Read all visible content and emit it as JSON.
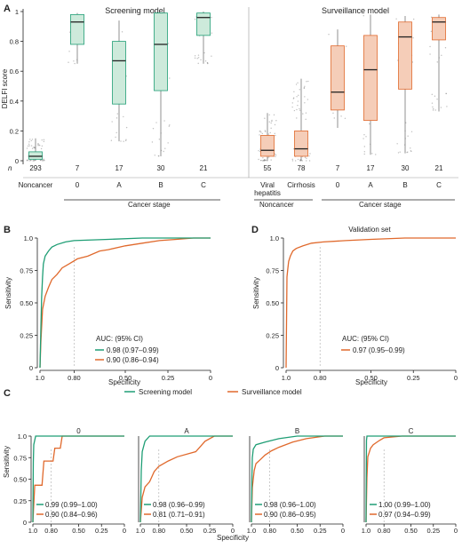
{
  "colors": {
    "screening": "#1f9e75",
    "surveillance": "#e0692c",
    "screening_fill": "#cdeadb",
    "surveillance_fill": "#f5cdb8"
  },
  "panels": {
    "a": "A",
    "b": "B",
    "c": "C",
    "d": "D"
  },
  "legend": {
    "screening": "Screening model",
    "surveillance": "Surveillance model"
  },
  "chart_data": [
    {
      "id": "A",
      "type": "box",
      "ylabel": "DELFI score",
      "ylim": [
        0,
        1
      ],
      "yticks": [
        "0",
        "0.2",
        "0.4",
        "0.6",
        "0.8",
        "1"
      ],
      "n_label": "n",
      "screening": {
        "title": "Screening model",
        "categories": [
          "Noncancer",
          "0",
          "A",
          "B",
          "C"
        ],
        "n": [
          "293",
          "7",
          "17",
          "30",
          "21"
        ],
        "boxes": [
          {
            "q1": 0.01,
            "median": 0.03,
            "q3": 0.06,
            "lo": 0.0,
            "hi": 0.15
          },
          {
            "q1": 0.78,
            "median": 0.93,
            "q3": 0.98,
            "lo": 0.65,
            "hi": 0.99
          },
          {
            "q1": 0.38,
            "median": 0.67,
            "q3": 0.8,
            "lo": 0.13,
            "hi": 0.94
          },
          {
            "q1": 0.47,
            "median": 0.78,
            "q3": 0.99,
            "lo": 0.03,
            "hi": 0.99
          },
          {
            "q1": 0.84,
            "median": 0.96,
            "q3": 0.99,
            "lo": 0.65,
            "hi": 1.0
          }
        ],
        "group_label": "Cancer stage"
      },
      "surveillance": {
        "title": "Surveillance model",
        "categories": [
          "Viral hepatitis",
          "Cirrhosis",
          "0",
          "A",
          "B",
          "C"
        ],
        "n": [
          "55",
          "78",
          "7",
          "17",
          "30",
          "21"
        ],
        "boxes": [
          {
            "q1": 0.03,
            "median": 0.07,
            "q3": 0.17,
            "lo": 0.0,
            "hi": 0.32
          },
          {
            "q1": 0.03,
            "median": 0.08,
            "q3": 0.2,
            "lo": 0.0,
            "hi": 0.55
          },
          {
            "q1": 0.34,
            "median": 0.46,
            "q3": 0.77,
            "lo": 0.22,
            "hi": 0.88
          },
          {
            "q1": 0.27,
            "median": 0.61,
            "q3": 0.84,
            "lo": 0.04,
            "hi": 0.98
          },
          {
            "q1": 0.48,
            "median": 0.83,
            "q3": 0.93,
            "lo": 0.05,
            "hi": 0.97
          },
          {
            "q1": 0.81,
            "median": 0.93,
            "q3": 0.96,
            "lo": 0.33,
            "hi": 0.98
          }
        ],
        "group_labels": [
          "Noncancer",
          "Cancer stage"
        ]
      }
    },
    {
      "id": "B",
      "type": "line",
      "xlabel": "Specificity",
      "ylabel": "Sensitivity",
      "xticks": [
        "1.0",
        "0.80",
        "0.50",
        "0.25",
        "0"
      ],
      "yticks": [
        "0",
        "0.25",
        "0.50",
        "0.75",
        "1.0"
      ],
      "legend_title": "AUC: (95% CI)",
      "series": [
        {
          "label": "0.98 (0.97–0.99)",
          "points": [
            [
              1,
              0
            ],
            [
              0.995,
              0.3
            ],
            [
              0.99,
              0.55
            ],
            [
              0.985,
              0.7
            ],
            [
              0.98,
              0.8
            ],
            [
              0.97,
              0.86
            ],
            [
              0.95,
              0.9
            ],
            [
              0.93,
              0.93
            ],
            [
              0.9,
              0.95
            ],
            [
              0.85,
              0.97
            ],
            [
              0.8,
              0.98
            ],
            [
              0.6,
              0.99
            ],
            [
              0.4,
              1.0
            ],
            [
              0,
              1.0
            ]
          ]
        },
        {
          "label": "0.90 (0.86–0.94)",
          "points": [
            [
              1,
              0
            ],
            [
              0.995,
              0.2
            ],
            [
              0.985,
              0.45
            ],
            [
              0.97,
              0.55
            ],
            [
              0.95,
              0.62
            ],
            [
              0.93,
              0.68
            ],
            [
              0.9,
              0.72
            ],
            [
              0.87,
              0.77
            ],
            [
              0.83,
              0.8
            ],
            [
              0.78,
              0.84
            ],
            [
              0.72,
              0.86
            ],
            [
              0.65,
              0.9
            ],
            [
              0.6,
              0.91
            ],
            [
              0.5,
              0.94
            ],
            [
              0.4,
              0.96
            ],
            [
              0.3,
              0.98
            ],
            [
              0.2,
              0.99
            ],
            [
              0.1,
              1.0
            ],
            [
              0,
              1.0
            ]
          ]
        }
      ]
    },
    {
      "id": "D",
      "type": "line",
      "title": "Validation set",
      "xlabel": "Specificity",
      "ylabel": "Sensitivity",
      "xticks": [
        "1.0",
        "0.80",
        "0.50",
        "0.25",
        "0"
      ],
      "yticks": [
        "0",
        "0.25",
        "0.50",
        "0.75",
        "1.0"
      ],
      "legend_title": "AUC: (95% CI)",
      "series": [
        {
          "label": "0.97 (0.95–0.99)",
          "points": [
            [
              1,
              0
            ],
            [
              0.995,
              0.7
            ],
            [
              0.99,
              0.76
            ],
            [
              0.985,
              0.82
            ],
            [
              0.975,
              0.86
            ],
            [
              0.96,
              0.9
            ],
            [
              0.94,
              0.92
            ],
            [
              0.9,
              0.94
            ],
            [
              0.85,
              0.96
            ],
            [
              0.78,
              0.97
            ],
            [
              0.65,
              0.98
            ],
            [
              0.5,
              0.99
            ],
            [
              0.3,
              1.0
            ],
            [
              0,
              1.0
            ]
          ]
        }
      ]
    },
    {
      "id": "C",
      "type": "line",
      "xlabel": "Specificity",
      "ylabel": "Sensitivity",
      "xticks": [
        "1.0",
        "0.80",
        "0.50",
        "0.25",
        "0"
      ],
      "yticks": [
        "0",
        "0.25",
        "0.50",
        "0.75",
        "1.0"
      ],
      "facets": [
        {
          "title": "0",
          "labels": [
            "0.99 (0.99–1.00)",
            "0.90 (0.84–0.96)"
          ],
          "screening": [
            [
              1,
              0
            ],
            [
              0.995,
              0.7
            ],
            [
              0.99,
              0.9
            ],
            [
              0.97,
              1.0
            ],
            [
              0,
              1.0
            ]
          ],
          "surveillance": [
            [
              1,
              0
            ],
            [
              0.98,
              0.43
            ],
            [
              0.9,
              0.43
            ],
            [
              0.88,
              0.71
            ],
            [
              0.78,
              0.71
            ],
            [
              0.76,
              0.86
            ],
            [
              0.7,
              0.86
            ],
            [
              0.68,
              1.0
            ],
            [
              0,
              1.0
            ]
          ]
        },
        {
          "title": "A",
          "labels": [
            "0.98 (0.96–0.99)",
            "0.81 (0.71–0.91)"
          ],
          "screening": [
            [
              1,
              0
            ],
            [
              0.99,
              0.6
            ],
            [
              0.98,
              0.82
            ],
            [
              0.95,
              0.94
            ],
            [
              0.9,
              1.0
            ],
            [
              0,
              1.0
            ]
          ],
          "surveillance": [
            [
              1,
              0
            ],
            [
              0.98,
              0.29
            ],
            [
              0.95,
              0.41
            ],
            [
              0.9,
              0.47
            ],
            [
              0.85,
              0.59
            ],
            [
              0.8,
              0.65
            ],
            [
              0.7,
              0.71
            ],
            [
              0.6,
              0.76
            ],
            [
              0.4,
              0.82
            ],
            [
              0.3,
              0.94
            ],
            [
              0.2,
              1.0
            ],
            [
              0,
              1.0
            ]
          ]
        },
        {
          "title": "B",
          "labels": [
            "0.98 (0.96–1.00)",
            "0.90 (0.86–0.95)"
          ],
          "screening": [
            [
              1,
              0
            ],
            [
              0.995,
              0.5
            ],
            [
              0.99,
              0.75
            ],
            [
              0.98,
              0.85
            ],
            [
              0.95,
              0.9
            ],
            [
              0.85,
              0.93
            ],
            [
              0.7,
              0.97
            ],
            [
              0.5,
              1.0
            ],
            [
              0,
              1.0
            ]
          ],
          "surveillance": [
            [
              1,
              0
            ],
            [
              0.99,
              0.4
            ],
            [
              0.97,
              0.6
            ],
            [
              0.95,
              0.68
            ],
            [
              0.9,
              0.73
            ],
            [
              0.85,
              0.78
            ],
            [
              0.78,
              0.83
            ],
            [
              0.7,
              0.87
            ],
            [
              0.55,
              0.93
            ],
            [
              0.4,
              0.97
            ],
            [
              0.2,
              1.0
            ],
            [
              0,
              1.0
            ]
          ]
        },
        {
          "title": "C",
          "labels": [
            "1.00 (0.99–1.00)",
            "0.97 (0.94–0.99)"
          ],
          "screening": [
            [
              1,
              0
            ],
            [
              0.995,
              0.95
            ],
            [
              0.99,
              1.0
            ],
            [
              0,
              1.0
            ]
          ],
          "surveillance": [
            [
              1,
              0
            ],
            [
              0.99,
              0.52
            ],
            [
              0.98,
              0.76
            ],
            [
              0.95,
              0.86
            ],
            [
              0.92,
              0.9
            ],
            [
              0.85,
              0.95
            ],
            [
              0.8,
              0.98
            ],
            [
              0.6,
              1.0
            ],
            [
              0,
              1.0
            ]
          ]
        }
      ]
    }
  ]
}
